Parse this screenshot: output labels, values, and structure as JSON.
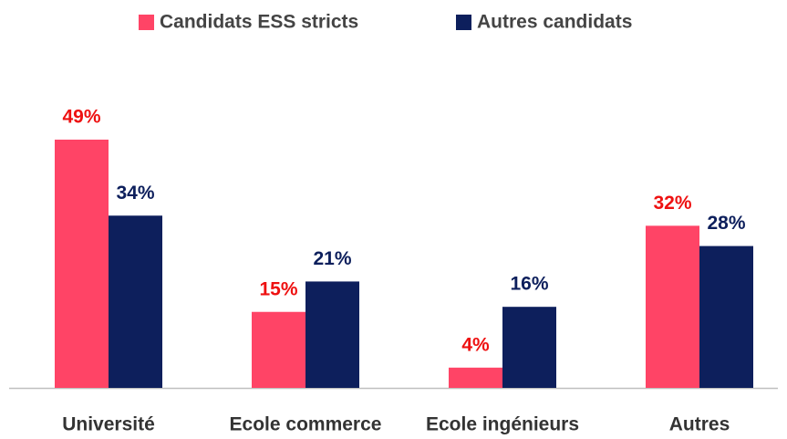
{
  "chart_data": {
    "type": "bar",
    "categories": [
      "Université",
      "Ecole commerce",
      "Ecole ingénieurs",
      "Autres"
    ],
    "series": [
      {
        "name": "Candidats ESS stricts",
        "color": "#ff4466",
        "label_color": "#ee1111",
        "values": [
          49,
          15,
          4,
          32
        ],
        "value_labels": [
          "49%",
          "15%",
          "4%",
          "32%"
        ]
      },
      {
        "name": "Autres candidats",
        "color": "#0d1f5c",
        "label_color": "#0d1f5c",
        "values": [
          34,
          21,
          16,
          28
        ],
        "value_labels": [
          "34%",
          "21%",
          "16%",
          "28%"
        ]
      }
    ],
    "legend": "top"
  }
}
